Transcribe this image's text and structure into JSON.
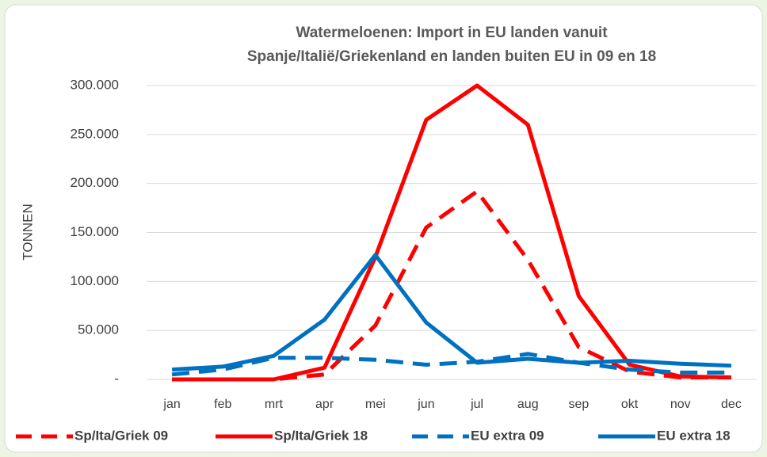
{
  "chart_data": {
    "type": "line",
    "title": [
      "Watermeloenen: Import in EU landen vanuit",
      "Spanje/Italië/Griekenland en landen buiten EU in 09 en 18"
    ],
    "y_label": "TONNEN",
    "categories": [
      "jan",
      "feb",
      "mrt",
      "apr",
      "mei",
      "jun",
      "jul",
      "aug",
      "sep",
      "okt",
      "nov",
      "dec"
    ],
    "series": [
      {
        "name": "Sp/Ita/Griek 09",
        "color": "#ff0000",
        "dashed": true,
        "values": [
          0,
          0,
          0,
          5000,
          55000,
          155000,
          192000,
          122000,
          33000,
          8000,
          2000,
          2000
        ]
      },
      {
        "name": "Sp/Ita/Griek 18",
        "color": "#ff0000",
        "dashed": false,
        "values": [
          0,
          0,
          0,
          12000,
          125000,
          265000,
          300000,
          260000,
          85000,
          15000,
          3000,
          2000
        ]
      },
      {
        "name": "EU extra 09",
        "color": "#0070c0",
        "dashed": true,
        "values": [
          5000,
          10000,
          22000,
          22000,
          20000,
          15000,
          18000,
          26000,
          17000,
          10000,
          7000,
          7000
        ]
      },
      {
        "name": "EU extra 18",
        "color": "#0070c0",
        "dashed": false,
        "values": [
          10000,
          13000,
          24000,
          61000,
          127000,
          58000,
          17000,
          21000,
          17000,
          19000,
          16000,
          14000
        ]
      }
    ],
    "ylim": [
      0,
      300000
    ],
    "yticks": [
      {
        "value": 0,
        "label": "-"
      },
      {
        "value": 50000,
        "label": "50.000"
      },
      {
        "value": 100000,
        "label": "100.000"
      },
      {
        "value": 150000,
        "label": "150.000"
      },
      {
        "value": 200000,
        "label": "200.000"
      },
      {
        "value": 250000,
        "label": "250.000"
      },
      {
        "value": 300000,
        "label": "300.000"
      }
    ],
    "grid": true,
    "legend": "bottom"
  }
}
